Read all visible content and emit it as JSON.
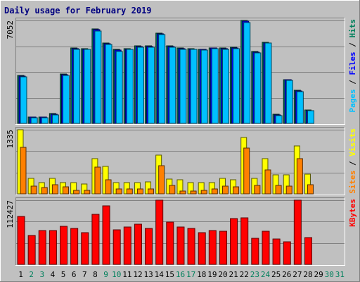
{
  "title": "Daily usage for February 2019",
  "colors": {
    "background": "#c0c0c0",
    "title": "#000080",
    "hits": "#00805c",
    "files": "#0000ff",
    "pages": "#00c0ff",
    "visits": "#ffff00",
    "sites": "#ff8000",
    "kbytes": "#ff0000",
    "weekend_day": "#00805c",
    "weekday": "#000000"
  },
  "chart_data": [
    {
      "type": "bar",
      "panel": "top",
      "ymax_label": "7052",
      "ylim": [
        0,
        7052
      ],
      "right_label_parts": [
        {
          "text": "Pages",
          "color_key": "pages"
        },
        {
          "text": " / ",
          "color_key": "weekday"
        },
        {
          "text": "Files",
          "color_key": "files"
        },
        {
          "text": " / ",
          "color_key": "weekday"
        },
        {
          "text": "Hits",
          "color_key": "hits"
        }
      ],
      "series": [
        {
          "name": "Hits",
          "color_key": "hits",
          "values": [
            3300,
            450,
            450,
            700,
            3380,
            5150,
            5120,
            6450,
            5500,
            5050,
            5120,
            5300,
            5300,
            6200,
            5300,
            5150,
            5120,
            5080,
            5180,
            5150,
            5200,
            7052,
            4930,
            5570,
            620,
            3010,
            2250,
            920,
            0,
            0,
            0
          ]
        },
        {
          "name": "Files",
          "color_key": "files",
          "values": [
            3250,
            420,
            420,
            650,
            3350,
            5100,
            5080,
            6400,
            5450,
            5000,
            5080,
            5250,
            5250,
            6150,
            5250,
            5100,
            5080,
            5050,
            5150,
            5100,
            5150,
            6980,
            4880,
            5520,
            580,
            2980,
            2200,
            880,
            0,
            0,
            0
          ]
        },
        {
          "name": "Pages",
          "color_key": "pages",
          "values": [
            3200,
            400,
            400,
            600,
            3300,
            5050,
            5050,
            6350,
            5400,
            4950,
            5050,
            5200,
            5200,
            6100,
            5200,
            5050,
            5050,
            5000,
            5100,
            5050,
            5100,
            6900,
            4850,
            5500,
            550,
            2950,
            2150,
            850,
            0,
            0,
            0
          ]
        }
      ]
    },
    {
      "type": "bar",
      "panel": "middle",
      "ymax_label": "1335",
      "ylim": [
        0,
        1335
      ],
      "right_label_parts": [
        {
          "text": "Sites",
          "color_key": "sites"
        },
        {
          "text": " / ",
          "color_key": "weekday"
        },
        {
          "text": "Visits",
          "color_key": "visits"
        }
      ],
      "series": [
        {
          "name": "Visits",
          "color_key": "visits",
          "values": [
            1335,
            330,
            230,
            330,
            240,
            240,
            200,
            730,
            570,
            230,
            230,
            230,
            250,
            810,
            310,
            300,
            240,
            240,
            240,
            330,
            290,
            1170,
            320,
            730,
            390,
            390,
            1000,
            410,
            0,
            0,
            0
          ]
        },
        {
          "name": "Sites",
          "color_key": "sites",
          "values": [
            970,
            160,
            130,
            190,
            150,
            70,
            70,
            560,
            300,
            100,
            100,
            100,
            100,
            580,
            170,
            60,
            60,
            70,
            100,
            160,
            150,
            960,
            180,
            500,
            180,
            160,
            740,
            190,
            0,
            0,
            0
          ]
        }
      ]
    },
    {
      "type": "bar",
      "panel": "bottom",
      "ymax_label": "112427",
      "ylim": [
        0,
        112427
      ],
      "right_label_parts": [
        {
          "text": "KBytes",
          "color_key": "kbytes"
        }
      ],
      "series": [
        {
          "name": "KBytes",
          "color_key": "kbytes",
          "values": [
            84000,
            51000,
            59000,
            59000,
            67000,
            63000,
            55000,
            88000,
            102000,
            60000,
            66000,
            70000,
            63000,
            112427,
            74000,
            66000,
            63000,
            55000,
            59000,
            58000,
            80000,
            82000,
            46000,
            58000,
            45000,
            39000,
            112000,
            47000,
            0,
            0,
            0
          ]
        }
      ]
    }
  ],
  "x_axis": {
    "days": [
      "1",
      "2",
      "3",
      "4",
      "5",
      "6",
      "7",
      "8",
      "9",
      "10",
      "11",
      "12",
      "13",
      "14",
      "15",
      "16",
      "17",
      "18",
      "19",
      "20",
      "21",
      "22",
      "23",
      "24",
      "25",
      "26",
      "27",
      "28",
      "29",
      "30",
      "31"
    ],
    "weekend_days": [
      "2",
      "3",
      "9",
      "10",
      "16",
      "17",
      "23",
      "24",
      "30",
      "31"
    ]
  }
}
